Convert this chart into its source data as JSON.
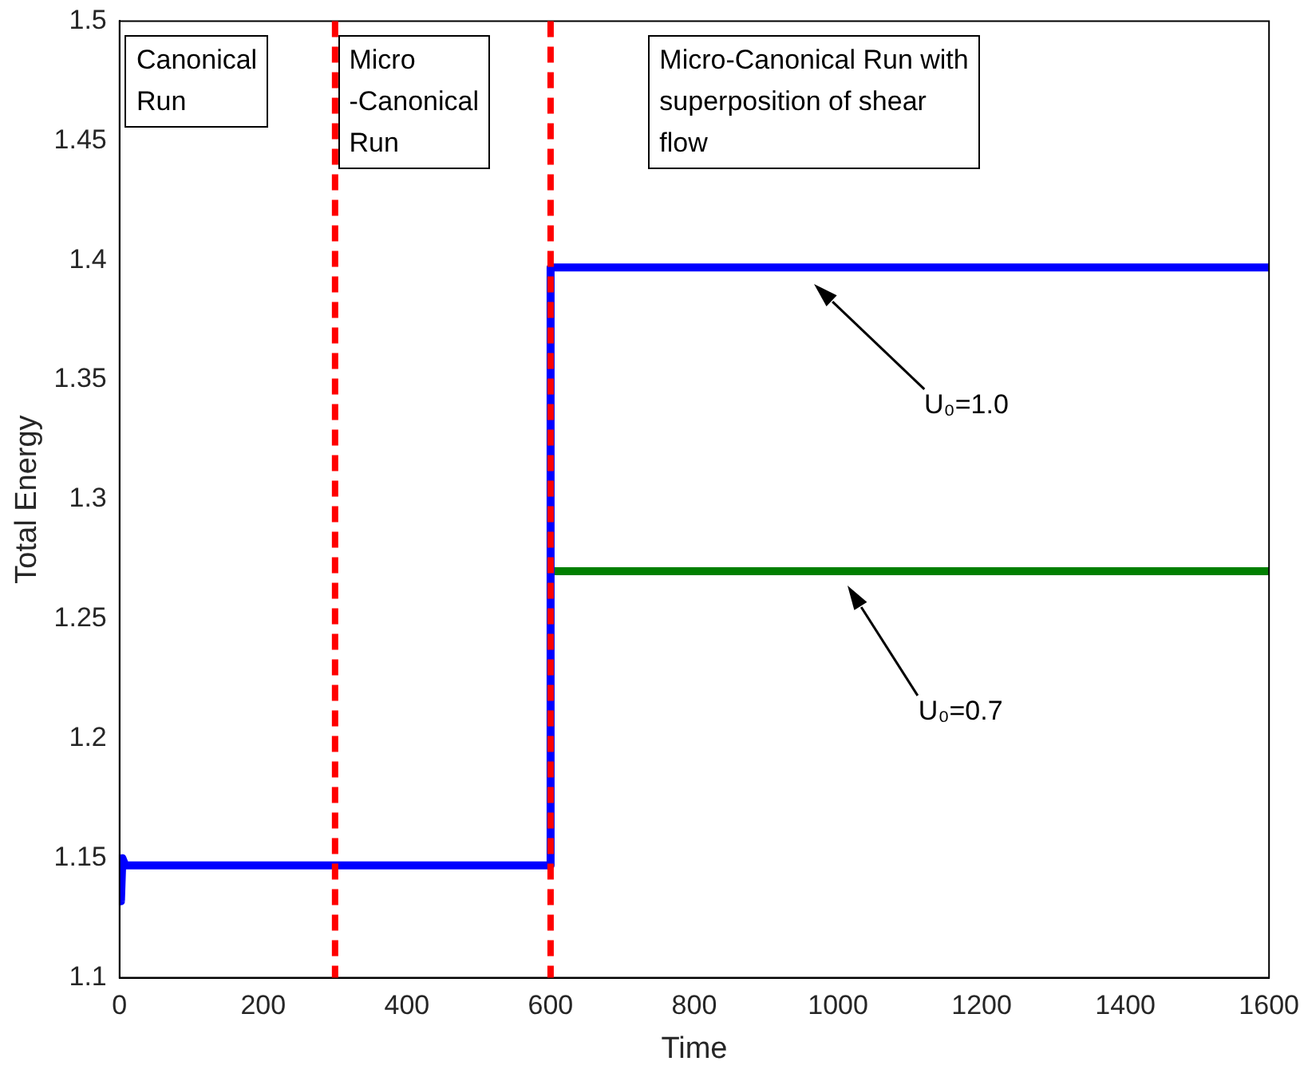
{
  "chart_data": {
    "type": "line",
    "xlabel": "Time",
    "ylabel": "Total Energy",
    "xlim": [
      0,
      1600
    ],
    "xticks": [
      0,
      200,
      400,
      600,
      800,
      1000,
      1200,
      1400,
      1600
    ],
    "ylim": [
      1.1,
      1.5
    ],
    "yticks": [
      1.1,
      1.15,
      1.2,
      1.25,
      1.3,
      1.35,
      1.4,
      1.45,
      1.5
    ],
    "grid": false,
    "legend": false,
    "marker": "none",
    "line_style": "solid",
    "series": [
      {
        "color": "#0000ff",
        "x": [
          0,
          2,
          4,
          8,
          600,
          600,
          1600
        ],
        "values": [
          1.148,
          1.132,
          1.15,
          1.147,
          1.147,
          1.397,
          1.397
        ]
      },
      {
        "color": "#007f00",
        "x": [
          600,
          1600
        ],
        "values": [
          1.27,
          1.27
        ]
      }
    ],
    "ref_lines": [
      {
        "axis": "x",
        "value": 300,
        "color": "#ff0000",
        "line_style": "dashed"
      },
      {
        "axis": "x",
        "value": 600,
        "color": "#ff0000",
        "line_style": "dashed"
      }
    ],
    "annotations": [
      "Canonical\nRun",
      "Micro\n-Canonical\nRun",
      "Micro-Canonical Run with\nsuperposition of shear\nflow",
      "U₀=1.0",
      "U₀=0.7"
    ]
  }
}
